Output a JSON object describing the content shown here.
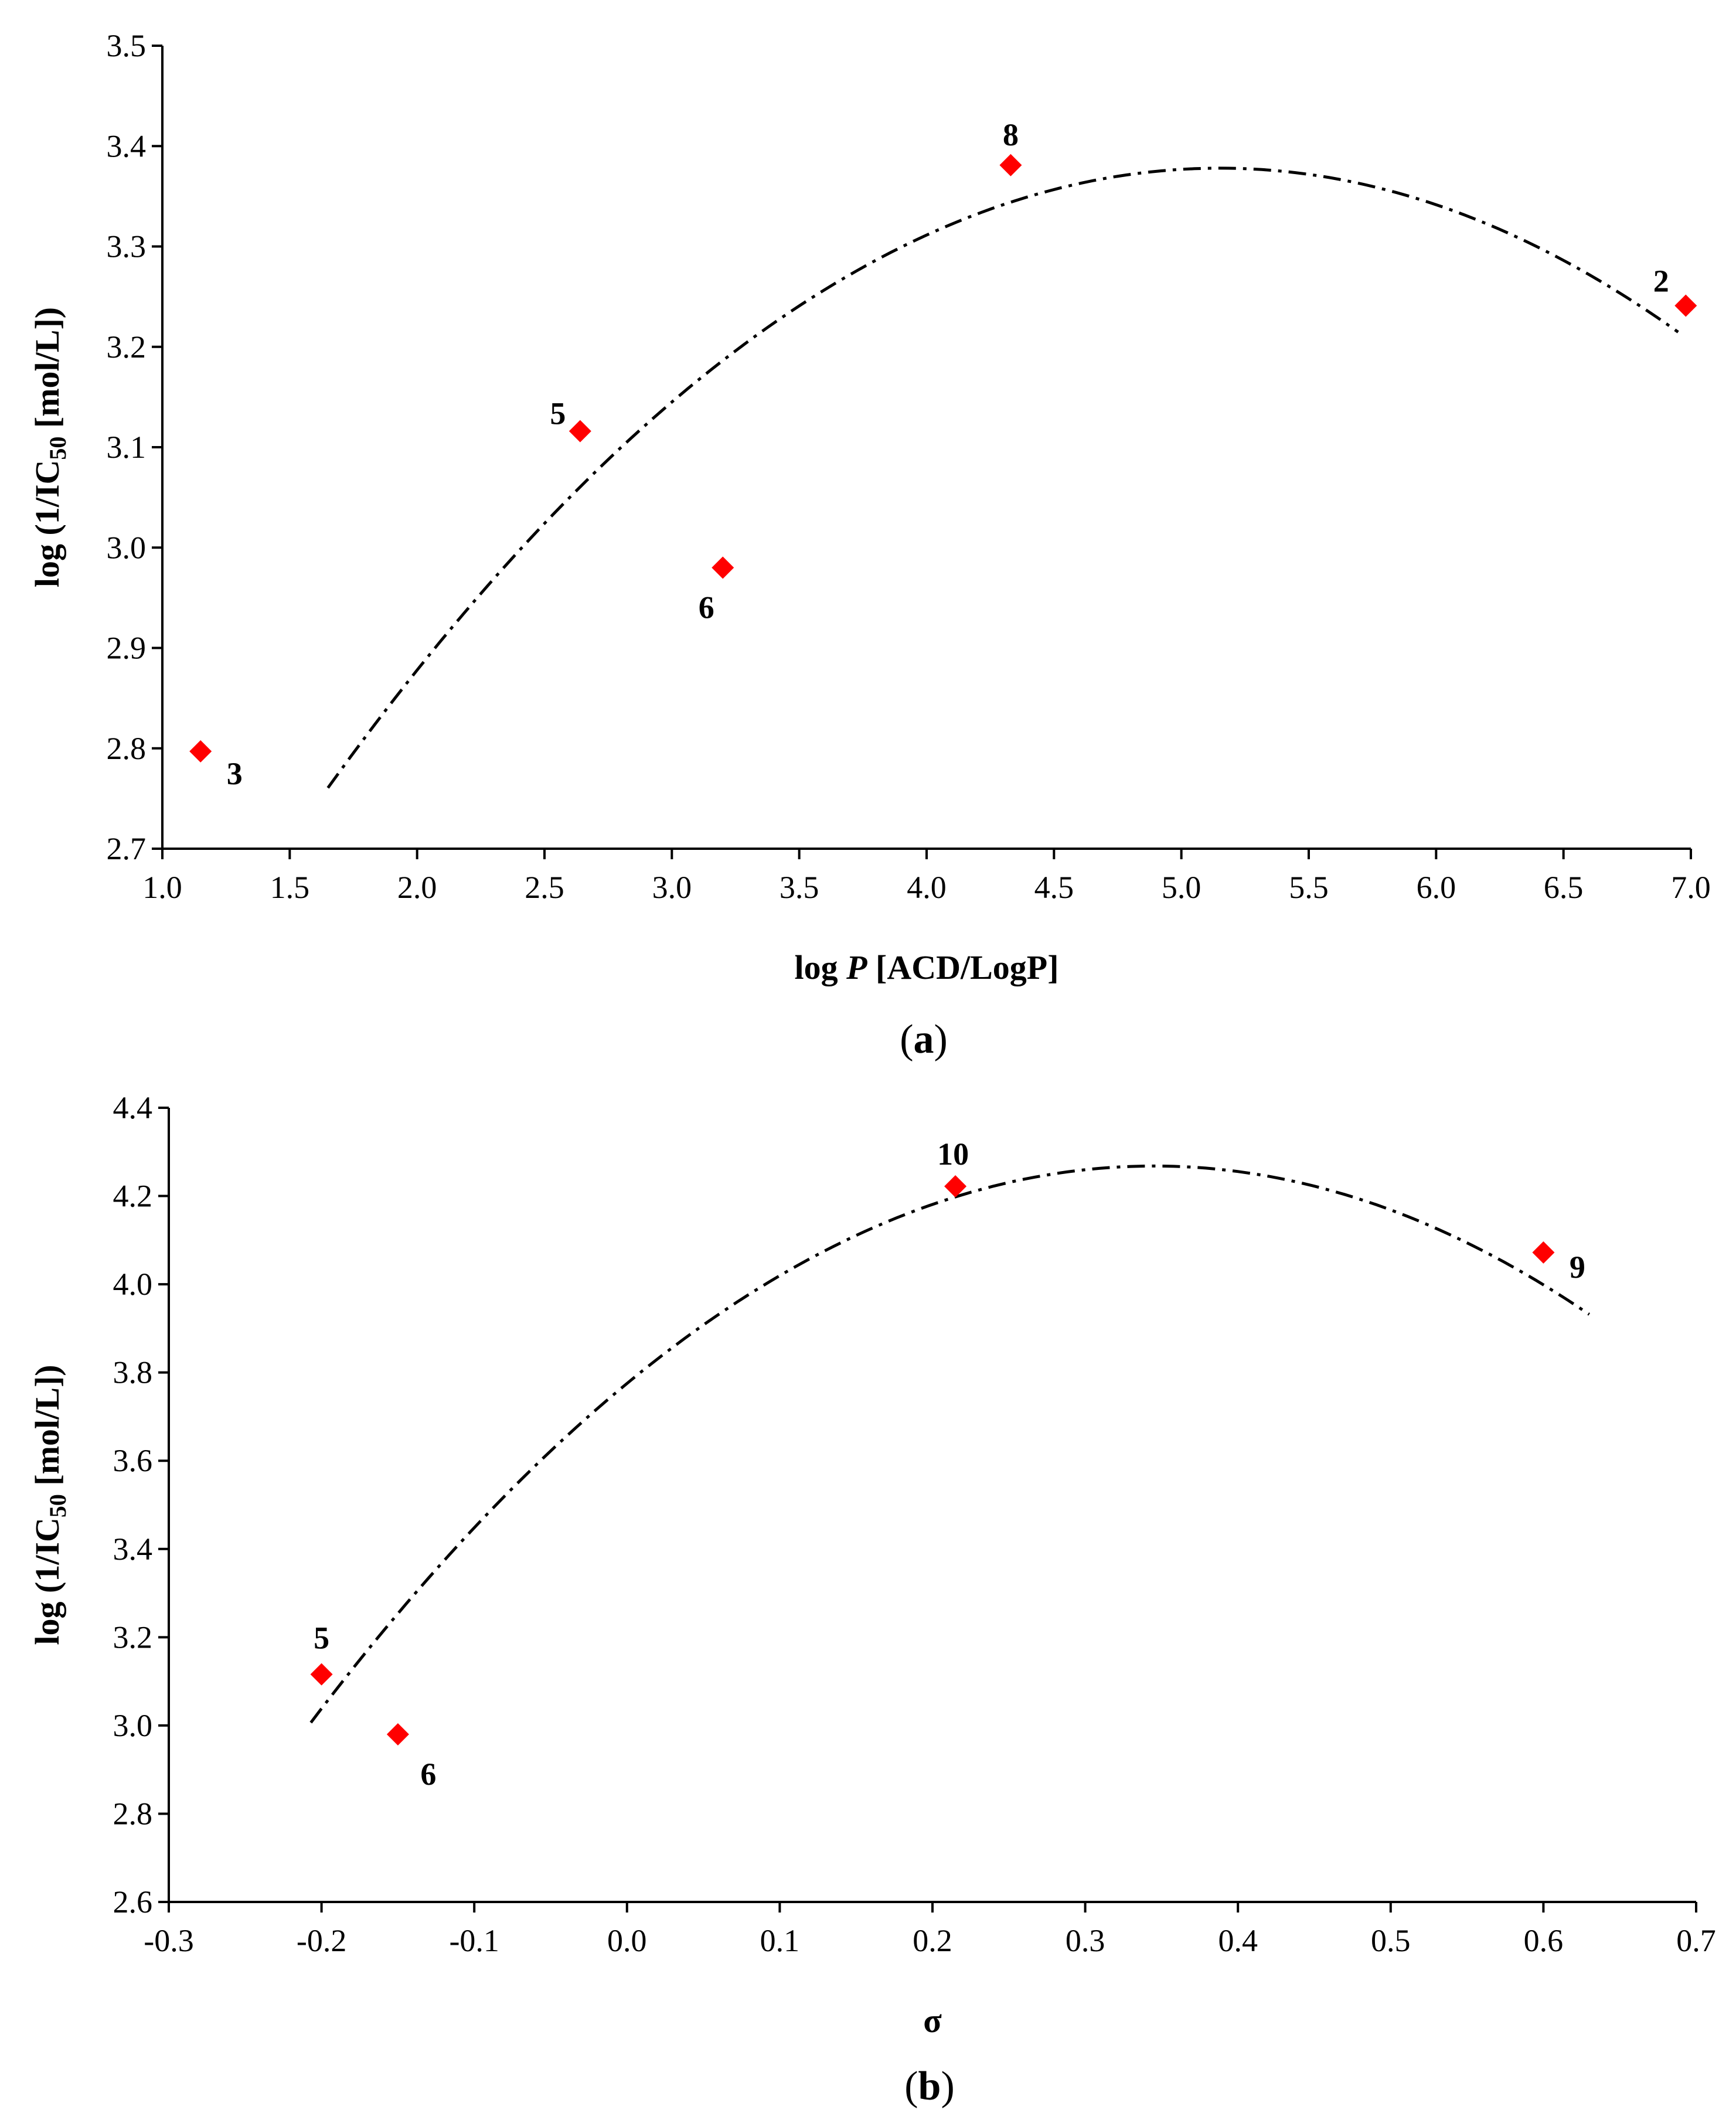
{
  "chart_data": [
    {
      "type": "scatter",
      "panel": "a",
      "panel_label": "(a)",
      "xlabel_prefix": "log ",
      "xlabel_italic": "P",
      "xlabel_suffix": "  [ACD/LogP]",
      "ylabel_prefix": "log (1/IC",
      "ylabel_sub": "50",
      "ylabel_suffix": " [mol/L])",
      "xlim": [
        1.0,
        7.0
      ],
      "ylim": [
        2.7,
        3.5
      ],
      "xticks": [
        "1.0",
        "1.5",
        "2.0",
        "2.5",
        "3.0",
        "3.5",
        "4.0",
        "4.5",
        "5.0",
        "5.5",
        "6.0",
        "6.5",
        "7.0"
      ],
      "yticks": [
        "2.7",
        "2.8",
        "2.9",
        "3.0",
        "3.1",
        "3.2",
        "3.3",
        "3.4",
        "3.5"
      ],
      "points": [
        {
          "label": "3",
          "x": 1.15,
          "y": 2.797
        },
        {
          "label": "5",
          "x": 2.64,
          "y": 3.116
        },
        {
          "label": "6",
          "x": 3.2,
          "y": 2.98
        },
        {
          "label": "8",
          "x": 4.33,
          "y": 3.381
        },
        {
          "label": "2",
          "x": 6.98,
          "y": 3.241
        }
      ],
      "fit": {
        "type": "quadratic",
        "vertex_x": 5.15,
        "vertex_y": 3.378,
        "a": -0.0504,
        "x_range": [
          1.65,
          6.95
        ]
      },
      "marker_color": "#ff0000"
    },
    {
      "type": "scatter",
      "panel": "b",
      "panel_label": "(b)",
      "xlabel": "σ",
      "ylabel_prefix": "log (1/IC",
      "ylabel_sub": "50",
      "ylabel_suffix": " [mol/L])",
      "xlim": [
        -0.3,
        0.7
      ],
      "ylim": [
        2.6,
        4.4
      ],
      "xticks": [
        "-0.3",
        "-0.2",
        "-0.1",
        "0.0",
        "0.1",
        "0.2",
        "0.3",
        "0.4",
        "0.5",
        "0.6",
        "0.7"
      ],
      "yticks": [
        "2.6",
        "2.8",
        "3.0",
        "3.2",
        "3.4",
        "3.6",
        "3.8",
        "4.0",
        "4.2",
        "4.4"
      ],
      "points": [
        {
          "label": "5",
          "x": -0.2,
          "y": 3.116
        },
        {
          "label": "6",
          "x": -0.15,
          "y": 2.98
        },
        {
          "label": "10",
          "x": 0.215,
          "y": 4.222
        },
        {
          "label": "9",
          "x": 0.6,
          "y": 4.072
        }
      ],
      "fit": {
        "type": "quadratic",
        "vertex_x": 0.345,
        "vertex_y": 4.268,
        "a": -4.14,
        "x_range": [
          -0.207,
          0.63
        ]
      },
      "marker_color": "#ff0000"
    }
  ]
}
